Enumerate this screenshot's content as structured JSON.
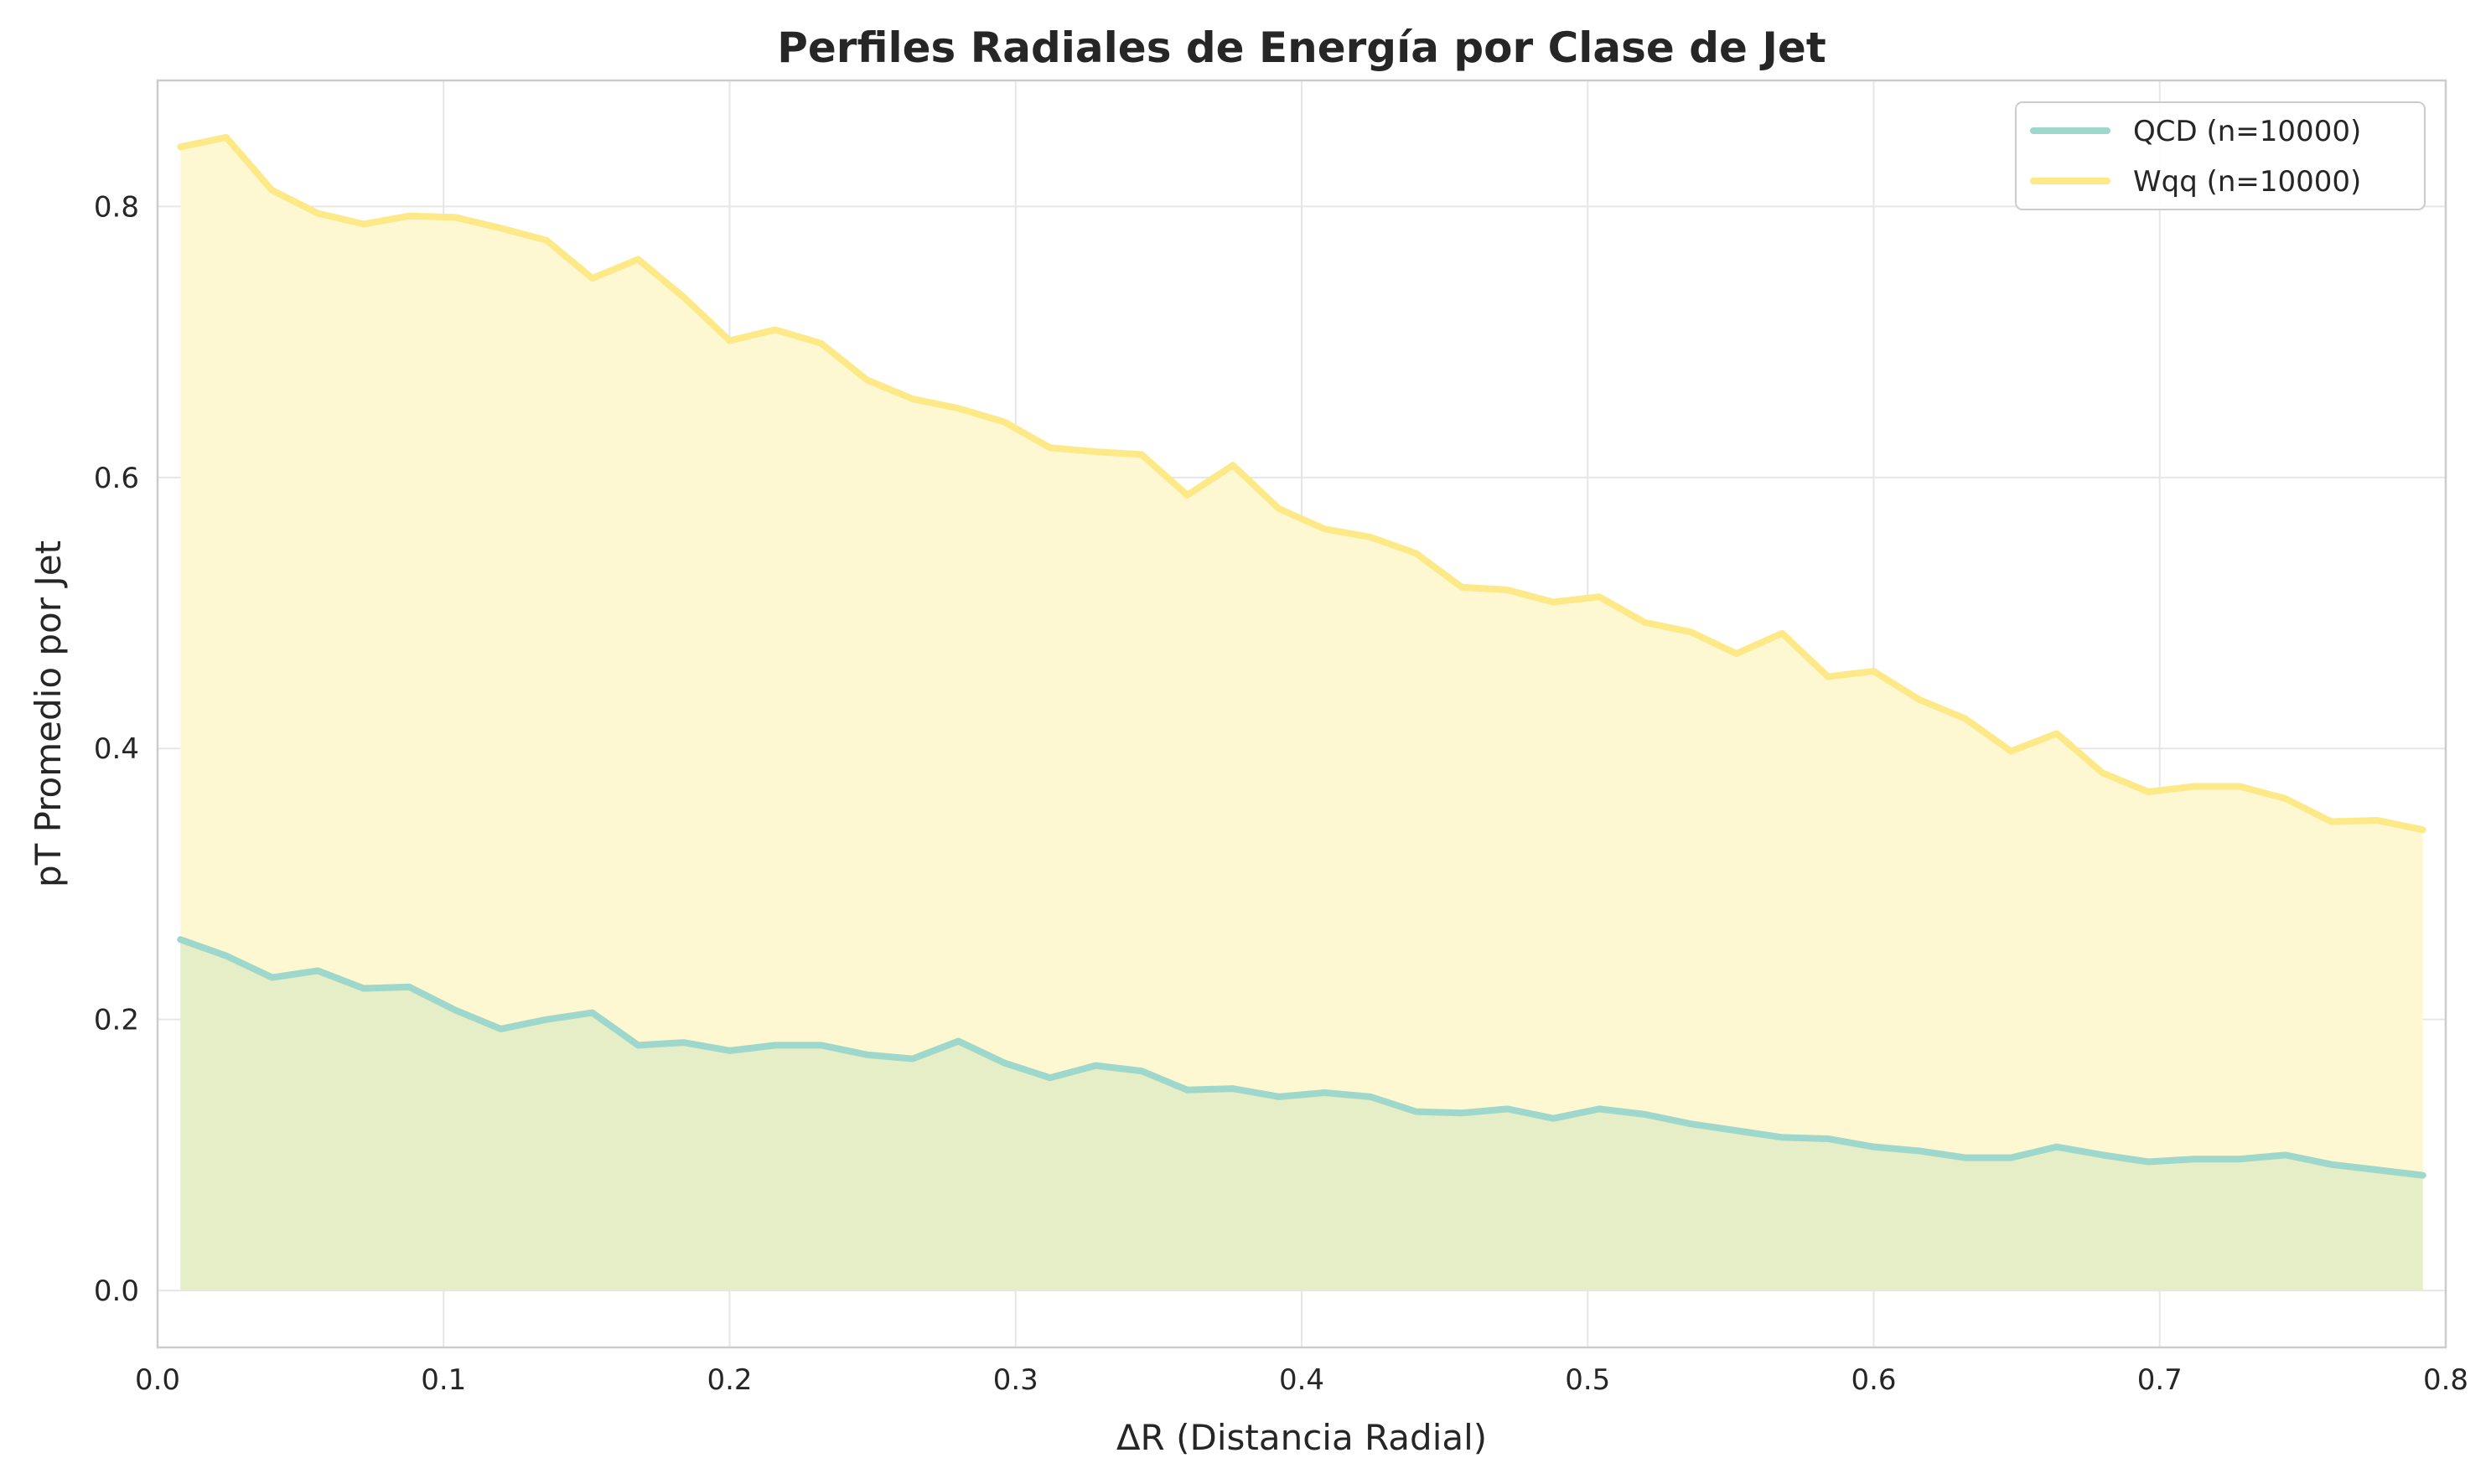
{
  "chart_data": {
    "type": "area",
    "title": "Perfiles Radiales de Energía por Clase de Jet",
    "xlabel": "ΔR (Distancia Radial)",
    "ylabel": "pT Promedio por Jet",
    "xlim": [
      0.0,
      0.8
    ],
    "ylim": [
      -0.042,
      0.893
    ],
    "xticks": [
      0.0,
      0.1,
      0.2,
      0.3,
      0.4,
      0.5,
      0.6,
      0.7,
      0.8
    ],
    "xtick_labels": [
      "0.0",
      "0.1",
      "0.2",
      "0.3",
      "0.4",
      "0.5",
      "0.6",
      "0.7",
      "0.8"
    ],
    "yticks": [
      0.0,
      0.2,
      0.4,
      0.6,
      0.8
    ],
    "ytick_labels": [
      "0.0",
      "0.2",
      "0.4",
      "0.6",
      "0.8"
    ],
    "grid": true,
    "legend_position": "top-right",
    "x": [
      0.008,
      0.024,
      0.04,
      0.056,
      0.072,
      0.088,
      0.104,
      0.12,
      0.136,
      0.152,
      0.168,
      0.184,
      0.2,
      0.216,
      0.232,
      0.248,
      0.264,
      0.28,
      0.296,
      0.312,
      0.328,
      0.344,
      0.36,
      0.376,
      0.392,
      0.408,
      0.424,
      0.44,
      0.456,
      0.472,
      0.488,
      0.504,
      0.52,
      0.536,
      0.552,
      0.568,
      0.584,
      0.6,
      0.616,
      0.632,
      0.648,
      0.664,
      0.68,
      0.696,
      0.712,
      0.728,
      0.744,
      0.76,
      0.776,
      0.792
    ],
    "series": [
      {
        "name": "QCD (n=10000)",
        "color": "#9ed7cb",
        "fill_color": "#e5eec6",
        "values": [
          0.259,
          0.247,
          0.231,
          0.236,
          0.223,
          0.224,
          0.207,
          0.193,
          0.2,
          0.205,
          0.181,
          0.183,
          0.177,
          0.181,
          0.181,
          0.174,
          0.171,
          0.184,
          0.168,
          0.157,
          0.166,
          0.162,
          0.148,
          0.149,
          0.143,
          0.146,
          0.143,
          0.132,
          0.131,
          0.134,
          0.127,
          0.134,
          0.13,
          0.123,
          0.118,
          0.113,
          0.112,
          0.106,
          0.103,
          0.098,
          0.098,
          0.106,
          0.1,
          0.095,
          0.097,
          0.097,
          0.1,
          0.093,
          0.089,
          0.085
        ]
      },
      {
        "name": "Wqq (n=10000)",
        "color": "#fde987",
        "fill_color": "#fef8d2",
        "values": [
          0.844,
          0.851,
          0.812,
          0.795,
          0.787,
          0.793,
          0.792,
          0.784,
          0.775,
          0.747,
          0.761,
          0.733,
          0.701,
          0.709,
          0.699,
          0.672,
          0.658,
          0.651,
          0.641,
          0.622,
          0.619,
          0.617,
          0.587,
          0.609,
          0.577,
          0.562,
          0.556,
          0.544,
          0.519,
          0.517,
          0.508,
          0.512,
          0.493,
          0.486,
          0.47,
          0.485,
          0.453,
          0.457,
          0.436,
          0.422,
          0.398,
          0.411,
          0.382,
          0.368,
          0.372,
          0.372,
          0.363,
          0.346,
          0.347,
          0.34
        ]
      }
    ]
  }
}
